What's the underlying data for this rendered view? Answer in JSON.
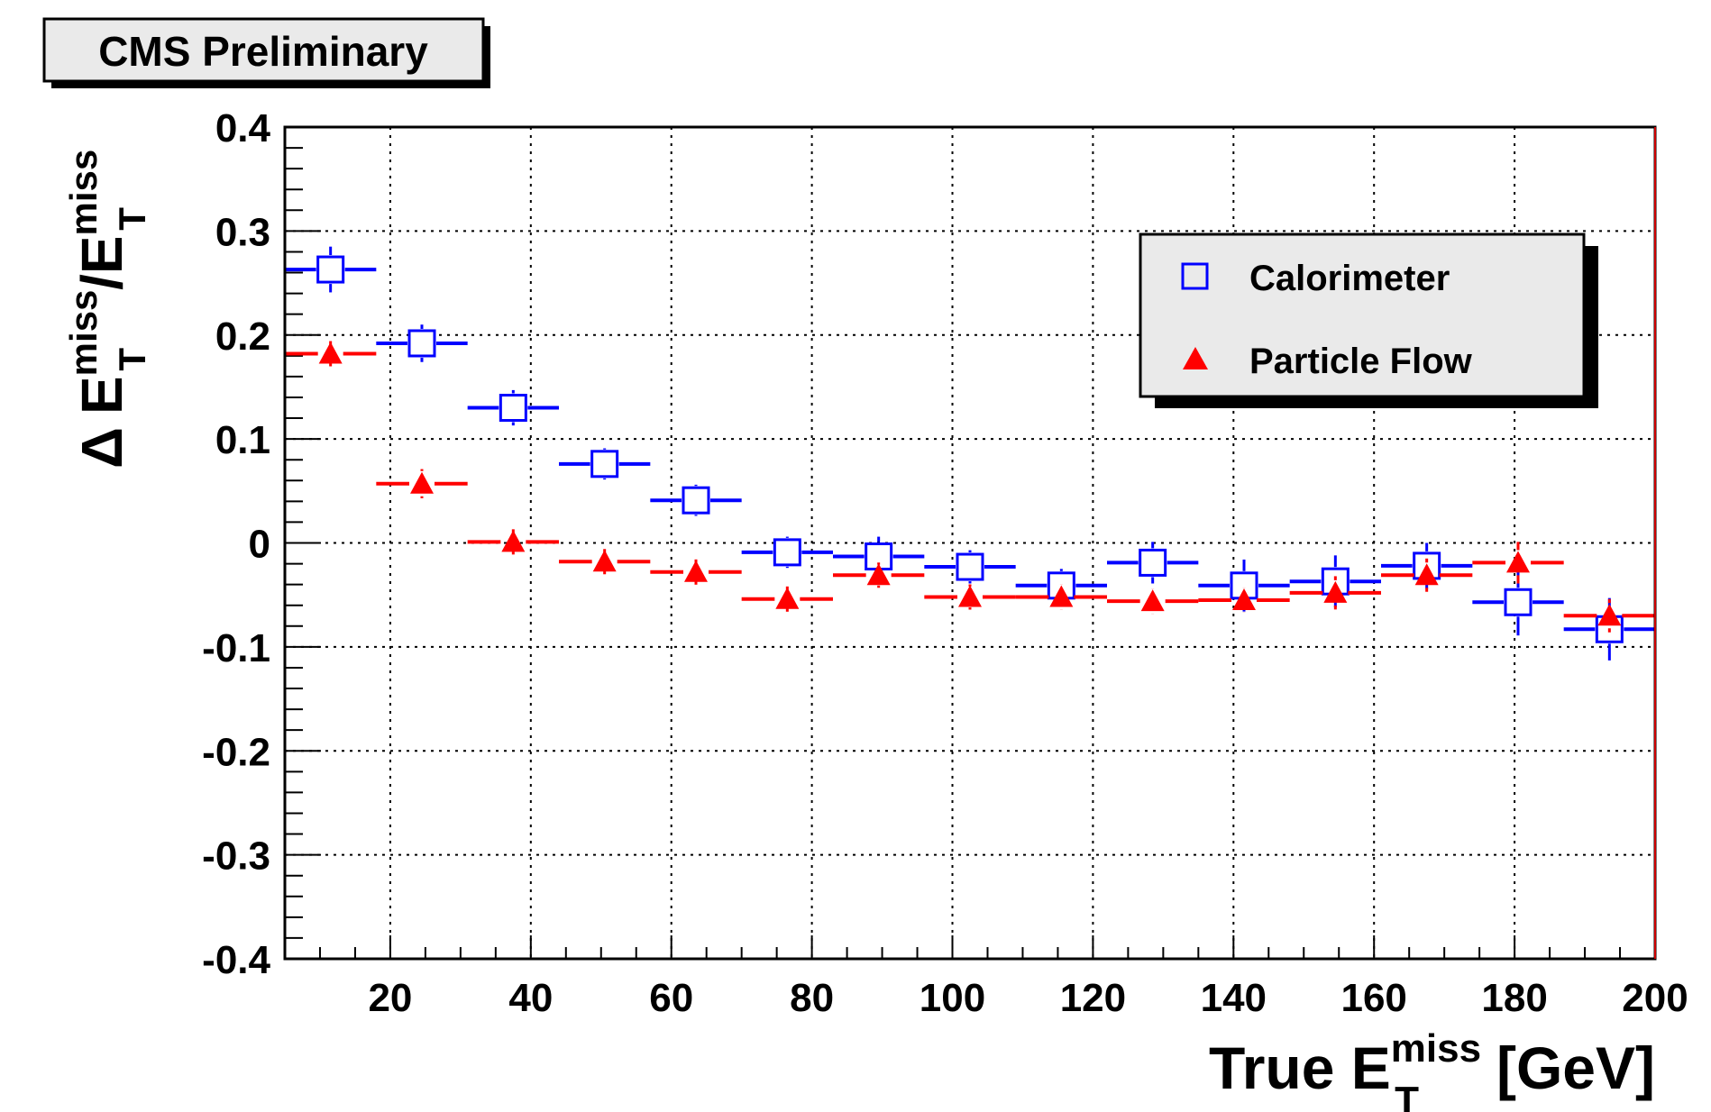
{
  "chart_data": {
    "type": "scatter",
    "title": "CMS Preliminary",
    "xlabel": {
      "main": "True E",
      "sup": "miss",
      "sub": "T",
      "unit": "[GeV]"
    },
    "ylabel": {
      "delta": "Δ",
      "e1": "E",
      "sup1": "miss",
      "sub1": "T",
      "slash": "/",
      "e2": "E",
      "sup2": "miss",
      "sub2": "T"
    },
    "xlim": [
      5,
      200
    ],
    "ylim": [
      -0.4,
      0.4
    ],
    "xticks": [
      20,
      40,
      60,
      80,
      100,
      120,
      140,
      160,
      180,
      200
    ],
    "yticks": [
      -0.4,
      -0.3,
      -0.2,
      -0.1,
      0,
      0.1,
      0.2,
      0.3,
      0.4
    ],
    "xticks_labels": [
      "20",
      "40",
      "60",
      "80",
      "100",
      "120",
      "140",
      "160",
      "180",
      "200"
    ],
    "yticks_labels": [
      "-0.4",
      "-0.3",
      "-0.2",
      "-0.1",
      "0",
      "0.1",
      "0.2",
      "0.3",
      "0.4"
    ],
    "grid": true,
    "legend_position": "top-right",
    "bin_edges": [
      5,
      18,
      31,
      44,
      57,
      70,
      83,
      96,
      109,
      122,
      135,
      148,
      161,
      174,
      187,
      200
    ],
    "series": [
      {
        "name": "Calorimeter",
        "marker": "open-square",
        "color": "#0000ff",
        "x": [
          11.5,
          24.5,
          37.5,
          50.5,
          63.5,
          76.5,
          89.5,
          102.5,
          115.5,
          128.5,
          141.5,
          154.5,
          167.5,
          180.5,
          193.5
        ],
        "y": [
          0.263,
          0.192,
          0.13,
          0.076,
          0.041,
          -0.009,
          -0.013,
          -0.023,
          -0.041,
          -0.019,
          -0.041,
          -0.037,
          -0.022,
          -0.057,
          -0.083
        ],
        "yerr": [
          0.022,
          0.018,
          0.017,
          0.015,
          0.015,
          0.015,
          0.019,
          0.016,
          0.016,
          0.02,
          0.025,
          0.025,
          0.022,
          0.032,
          0.03
        ]
      },
      {
        "name": "Particle Flow",
        "marker": "filled-triangle",
        "color": "#ff0000",
        "x": [
          11.5,
          24.5,
          37.5,
          50.5,
          63.5,
          76.5,
          89.5,
          102.5,
          115.5,
          128.5,
          141.5,
          154.5,
          167.5,
          180.5,
          193.5
        ],
        "y": [
          0.182,
          0.057,
          0.001,
          -0.018,
          -0.028,
          -0.054,
          -0.031,
          -0.052,
          -0.052,
          -0.056,
          -0.055,
          -0.048,
          -0.031,
          -0.019,
          -0.07
        ],
        "yerr": [
          0.006,
          0.014,
          0.006,
          0.006,
          0.007,
          0.009,
          0.01,
          0.01,
          0.012,
          0.012,
          0.012,
          0.016,
          0.016,
          0.02,
          0.016
        ]
      }
    ]
  }
}
